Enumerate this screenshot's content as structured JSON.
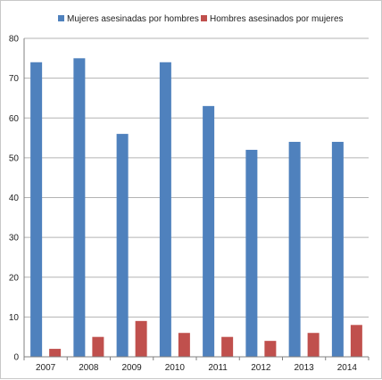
{
  "chart_data": {
    "type": "bar",
    "categories": [
      "2007",
      "2008",
      "2009",
      "2010",
      "2011",
      "2012",
      "2013",
      "2014"
    ],
    "series": [
      {
        "name": "Mujeres asesinadas por hombres",
        "color": "#4f81bd",
        "values": [
          74,
          75,
          56,
          74,
          63,
          52,
          54,
          54
        ]
      },
      {
        "name": "Hombres asesinados por mujeres",
        "color": "#c0504d",
        "values": [
          2,
          5,
          9,
          6,
          5,
          4,
          6,
          8
        ]
      }
    ],
    "ylim": [
      0,
      80
    ],
    "yticks": [
      0,
      10,
      20,
      30,
      40,
      50,
      60,
      70,
      80
    ],
    "grid": true,
    "legend_position": "top"
  }
}
